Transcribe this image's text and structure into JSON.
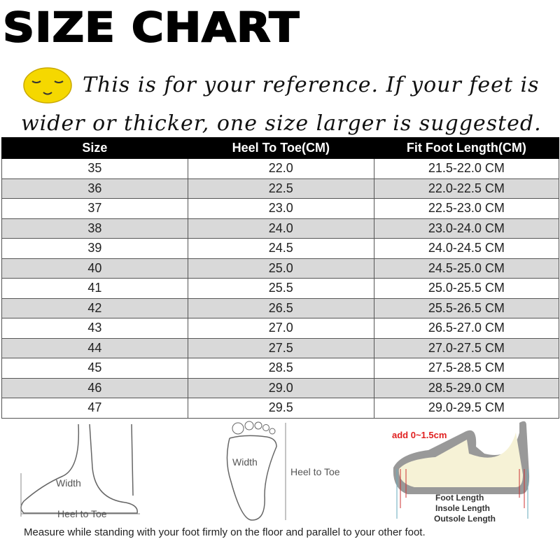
{
  "title": "SIZE CHART",
  "note_line1": "This is for your reference. If your feet is",
  "note_line2": "wider or thicker, one size larger is suggested.",
  "table": {
    "headers": [
      "Size",
      "Heel To Toe(CM)",
      "Fit Foot Length(CM)"
    ],
    "rows": [
      [
        "35",
        "22.0",
        "21.5-22.0 CM"
      ],
      [
        "36",
        "22.5",
        "22.0-22.5 CM"
      ],
      [
        "37",
        "23.0",
        "22.5-23.0 CM"
      ],
      [
        "38",
        "24.0",
        "23.0-24.0 CM"
      ],
      [
        "39",
        "24.5",
        "24.0-24.5 CM"
      ],
      [
        "40",
        "25.0",
        "24.5-25.0 CM"
      ],
      [
        "41",
        "25.5",
        "25.0-25.5 CM"
      ],
      [
        "42",
        "26.5",
        "25.5-26.5 CM"
      ],
      [
        "43",
        "27.0",
        "26.5-27.0 CM"
      ],
      [
        "44",
        "27.5",
        "27.0-27.5 CM"
      ],
      [
        "45",
        "28.5",
        "27.5-28.5 CM"
      ],
      [
        "46",
        "29.0",
        "28.5-29.0 CM"
      ],
      [
        "47",
        "29.5",
        "29.0-29.5 CM"
      ]
    ]
  },
  "diagrams": {
    "side_foot": {
      "width": "Width",
      "heel_to_toe": "Heel to Toe"
    },
    "sole": {
      "width": "Width",
      "heel_to_toe": "Heel to Toe"
    },
    "shoe": {
      "add": "add 0~1.5cm",
      "foot_length": "Foot Length",
      "insole_length": "Insole Length",
      "outsole_length": "Outsole Length"
    }
  },
  "caption": "Measure while standing with your foot firmly on the floor and parallel to your other foot.",
  "colors": {
    "header_bg": "#000000",
    "alt_row": "#d9d9d9",
    "smiley": "#f5d800",
    "add_label": "#e02020"
  }
}
